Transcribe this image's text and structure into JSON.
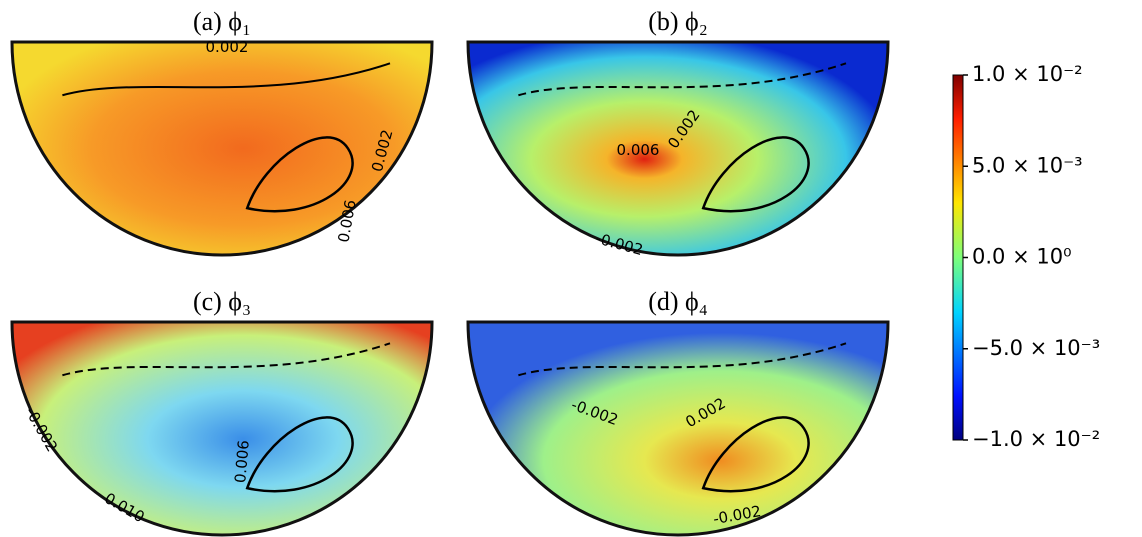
{
  "panels": [
    {
      "title": "(a) ϕ₁",
      "contour_labels": [
        "0.002",
        "0.002",
        "0.006"
      ]
    },
    {
      "title": "(b) ϕ₂",
      "contour_labels": [
        "0.002",
        "0.006",
        "-0.002"
      ]
    },
    {
      "title": "(c) ϕ₃",
      "contour_labels": [
        "-0.002",
        "0.006",
        "0.010"
      ]
    },
    {
      "title": "(d) ϕ₄",
      "contour_labels": [
        "-0.002",
        "0.002",
        "-0.002"
      ]
    }
  ],
  "colorbar": {
    "lim": [
      -0.01,
      0.01
    ],
    "ticks": [
      {
        "value": 0.01,
        "label": "1.0 × 10⁻²"
      },
      {
        "value": 0.005,
        "label": "5.0 × 10⁻³"
      },
      {
        "value": 0,
        "label": "0.0 × 10⁰"
      },
      {
        "value": -0.005,
        "label": "−5.0 × 10⁻³"
      },
      {
        "value": -0.01,
        "label": "−1.0 × 10⁻²"
      }
    ]
  }
}
